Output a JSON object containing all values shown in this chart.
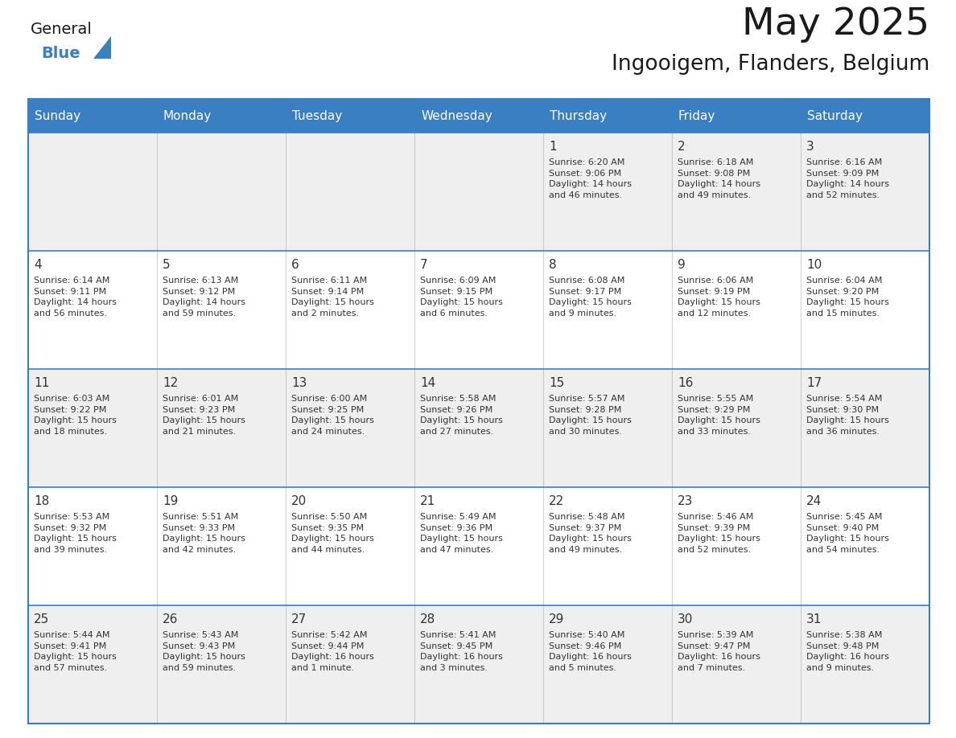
{
  "title": "May 2025",
  "subtitle": "Ingooigem, Flanders, Belgium",
  "header_bg_color": "#3A7FC1",
  "header_text_color": "#FFFFFF",
  "cell_bg_white": "#FFFFFF",
  "cell_bg_gray": "#EFEFEF",
  "border_color": "#3A7FC1",
  "title_color": "#1A1A1A",
  "subtitle_color": "#1A1A1A",
  "day_number_color": "#333333",
  "cell_text_color": "#333333",
  "days_of_week": [
    "Sunday",
    "Monday",
    "Tuesday",
    "Wednesday",
    "Thursday",
    "Friday",
    "Saturday"
  ],
  "weeks": [
    [
      {
        "day": "",
        "text": ""
      },
      {
        "day": "",
        "text": ""
      },
      {
        "day": "",
        "text": ""
      },
      {
        "day": "",
        "text": ""
      },
      {
        "day": "1",
        "text": "Sunrise: 6:20 AM\nSunset: 9:06 PM\nDaylight: 14 hours\nand 46 minutes."
      },
      {
        "day": "2",
        "text": "Sunrise: 6:18 AM\nSunset: 9:08 PM\nDaylight: 14 hours\nand 49 minutes."
      },
      {
        "day": "3",
        "text": "Sunrise: 6:16 AM\nSunset: 9:09 PM\nDaylight: 14 hours\nand 52 minutes."
      }
    ],
    [
      {
        "day": "4",
        "text": "Sunrise: 6:14 AM\nSunset: 9:11 PM\nDaylight: 14 hours\nand 56 minutes."
      },
      {
        "day": "5",
        "text": "Sunrise: 6:13 AM\nSunset: 9:12 PM\nDaylight: 14 hours\nand 59 minutes."
      },
      {
        "day": "6",
        "text": "Sunrise: 6:11 AM\nSunset: 9:14 PM\nDaylight: 15 hours\nand 2 minutes."
      },
      {
        "day": "7",
        "text": "Sunrise: 6:09 AM\nSunset: 9:15 PM\nDaylight: 15 hours\nand 6 minutes."
      },
      {
        "day": "8",
        "text": "Sunrise: 6:08 AM\nSunset: 9:17 PM\nDaylight: 15 hours\nand 9 minutes."
      },
      {
        "day": "9",
        "text": "Sunrise: 6:06 AM\nSunset: 9:19 PM\nDaylight: 15 hours\nand 12 minutes."
      },
      {
        "day": "10",
        "text": "Sunrise: 6:04 AM\nSunset: 9:20 PM\nDaylight: 15 hours\nand 15 minutes."
      }
    ],
    [
      {
        "day": "11",
        "text": "Sunrise: 6:03 AM\nSunset: 9:22 PM\nDaylight: 15 hours\nand 18 minutes."
      },
      {
        "day": "12",
        "text": "Sunrise: 6:01 AM\nSunset: 9:23 PM\nDaylight: 15 hours\nand 21 minutes."
      },
      {
        "day": "13",
        "text": "Sunrise: 6:00 AM\nSunset: 9:25 PM\nDaylight: 15 hours\nand 24 minutes."
      },
      {
        "day": "14",
        "text": "Sunrise: 5:58 AM\nSunset: 9:26 PM\nDaylight: 15 hours\nand 27 minutes."
      },
      {
        "day": "15",
        "text": "Sunrise: 5:57 AM\nSunset: 9:28 PM\nDaylight: 15 hours\nand 30 minutes."
      },
      {
        "day": "16",
        "text": "Sunrise: 5:55 AM\nSunset: 9:29 PM\nDaylight: 15 hours\nand 33 minutes."
      },
      {
        "day": "17",
        "text": "Sunrise: 5:54 AM\nSunset: 9:30 PM\nDaylight: 15 hours\nand 36 minutes."
      }
    ],
    [
      {
        "day": "18",
        "text": "Sunrise: 5:53 AM\nSunset: 9:32 PM\nDaylight: 15 hours\nand 39 minutes."
      },
      {
        "day": "19",
        "text": "Sunrise: 5:51 AM\nSunset: 9:33 PM\nDaylight: 15 hours\nand 42 minutes."
      },
      {
        "day": "20",
        "text": "Sunrise: 5:50 AM\nSunset: 9:35 PM\nDaylight: 15 hours\nand 44 minutes."
      },
      {
        "day": "21",
        "text": "Sunrise: 5:49 AM\nSunset: 9:36 PM\nDaylight: 15 hours\nand 47 minutes."
      },
      {
        "day": "22",
        "text": "Sunrise: 5:48 AM\nSunset: 9:37 PM\nDaylight: 15 hours\nand 49 minutes."
      },
      {
        "day": "23",
        "text": "Sunrise: 5:46 AM\nSunset: 9:39 PM\nDaylight: 15 hours\nand 52 minutes."
      },
      {
        "day": "24",
        "text": "Sunrise: 5:45 AM\nSunset: 9:40 PM\nDaylight: 15 hours\nand 54 minutes."
      }
    ],
    [
      {
        "day": "25",
        "text": "Sunrise: 5:44 AM\nSunset: 9:41 PM\nDaylight: 15 hours\nand 57 minutes."
      },
      {
        "day": "26",
        "text": "Sunrise: 5:43 AM\nSunset: 9:43 PM\nDaylight: 15 hours\nand 59 minutes."
      },
      {
        "day": "27",
        "text": "Sunrise: 5:42 AM\nSunset: 9:44 PM\nDaylight: 16 hours\nand 1 minute."
      },
      {
        "day": "28",
        "text": "Sunrise: 5:41 AM\nSunset: 9:45 PM\nDaylight: 16 hours\nand 3 minutes."
      },
      {
        "day": "29",
        "text": "Sunrise: 5:40 AM\nSunset: 9:46 PM\nDaylight: 16 hours\nand 5 minutes."
      },
      {
        "day": "30",
        "text": "Sunrise: 5:39 AM\nSunset: 9:47 PM\nDaylight: 16 hours\nand 7 minutes."
      },
      {
        "day": "31",
        "text": "Sunrise: 5:38 AM\nSunset: 9:48 PM\nDaylight: 16 hours\nand 9 minutes."
      }
    ]
  ]
}
